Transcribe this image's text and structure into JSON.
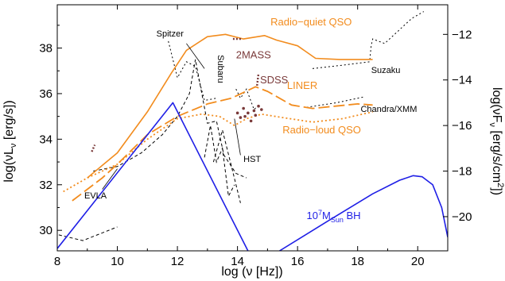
{
  "chart_data": {
    "type": "line",
    "xlabel": {
      "main": "log (ν [Hz])"
    },
    "ylabel_left": {
      "pre": "log(νL",
      "sub": "ν",
      "post": " [erg/s])"
    },
    "ylabel_right": {
      "pre": "log(νF",
      "sub": "ν",
      "post": " [erg/s/cm",
      "sup": "2",
      "end": "])"
    },
    "xlim": [
      8,
      21
    ],
    "ylim": [
      29.1,
      39.9
    ],
    "y2_offset": 50.6,
    "x_ticks": [
      "8",
      "10",
      "12",
      "14",
      "16",
      "18",
      "20"
    ],
    "y_ticks": [
      "30",
      "32",
      "34",
      "36",
      "38"
    ],
    "y2_ticks": [
      "−12",
      "−14",
      "−16",
      "−18",
      "−20"
    ],
    "series": [
      {
        "name": "Radio−quiet QSO",
        "color": "#f28c1e",
        "dash": "solid",
        "x": [
          9.0,
          10.0,
          11.0,
          11.8,
          12.3,
          13.0,
          13.6,
          14.2,
          14.9,
          15.3,
          16.0,
          16.6,
          17.4,
          18.5
        ],
        "y": [
          32.3,
          33.4,
          35.2,
          36.9,
          37.9,
          38.5,
          38.6,
          38.4,
          38.55,
          38.35,
          38.1,
          37.55,
          37.5,
          37.5
        ]
      },
      {
        "name": "LINER",
        "color": "#f28c1e",
        "dash": "long",
        "x": [
          8.5,
          9.5,
          10.0,
          11.0,
          12.0,
          13.0,
          13.8,
          14.6,
          15.0,
          15.8,
          16.5,
          18.0,
          18.5
        ],
        "y": [
          31.3,
          32.3,
          32.9,
          34.2,
          35.0,
          35.55,
          35.8,
          36.3,
          36.1,
          35.5,
          35.35,
          35.55,
          35.5
        ]
      },
      {
        "name": "Radio−loud QSO",
        "color": "#f28c1e",
        "dash": "dotted",
        "x": [
          8.2,
          9.0,
          10.0,
          11.0,
          12.0,
          12.8,
          13.4,
          13.9,
          14.3,
          14.8,
          15.5,
          16.5,
          17.5,
          18.5
        ],
        "y": [
          31.7,
          32.3,
          32.9,
          34.0,
          34.9,
          35.1,
          35.0,
          34.6,
          34.9,
          35.1,
          34.95,
          34.75,
          34.9,
          35.2
        ]
      },
      {
        "name": "blue-low",
        "color": "#1f1fe6",
        "dash": "solid",
        "x": [
          8.0,
          11.85,
          14.35
        ],
        "y": [
          29.2,
          35.6,
          29.1
        ]
      },
      {
        "name": "blue-high",
        "color": "#1f1fe6",
        "dash": "solid",
        "x": [
          15.4,
          17.0,
          18.5,
          19.4,
          19.85,
          20.15,
          20.5,
          20.8,
          21.0
        ],
        "y": [
          29.1,
          30.4,
          31.6,
          32.2,
          32.4,
          32.35,
          32.0,
          31.0,
          29.7
        ]
      }
    ],
    "sensitivity_curves": [
      {
        "name": "EVLA-1",
        "style": "dashed",
        "x": [
          8.05,
          8.85,
          10.0
        ],
        "y": [
          29.8,
          29.55,
          30.15
        ]
      },
      {
        "name": "EVLA-2",
        "style": "dashed",
        "x": [
          9.2,
          10.0,
          10.8,
          11.5,
          12.0,
          12.4,
          12.6,
          13.0,
          13.3,
          13.55,
          13.75,
          13.95,
          14.3
        ],
        "y": [
          32.6,
          32.8,
          33.4,
          34.2,
          35.0,
          36.0,
          37.5,
          34.7,
          34.8,
          33.3,
          32.9,
          32.5,
          32.3
        ]
      },
      {
        "name": "HST-1",
        "style": "dashed",
        "x": [
          12.9,
          13.1,
          13.3,
          13.5,
          13.7,
          13.9
        ],
        "y": [
          33.2,
          34.6,
          33.0,
          33.6,
          31.5,
          32.0
        ]
      },
      {
        "name": "HST-2",
        "style": "dashed",
        "x": [
          13.2,
          13.5,
          13.8,
          14.1
        ],
        "y": [
          33.0,
          34.4,
          32.8,
          31.2
        ]
      },
      {
        "name": "Spitzer",
        "style": "dotted",
        "x": [
          11.7,
          12.0,
          12.3,
          12.6,
          12.9,
          13.3
        ],
        "y": [
          38.3,
          36.7,
          37.4,
          37.2,
          35.7,
          35.8
        ]
      },
      {
        "name": "Subaru",
        "style": "dotted",
        "x": [
          13.95,
          14.1,
          14.3,
          14.55,
          14.7
        ],
        "y": [
          36.2,
          35.8,
          36.2,
          35.3,
          35.5
        ]
      },
      {
        "name": "Suzaku",
        "style": "dotted",
        "x": [
          16.5,
          17.5,
          18.4,
          18.45,
          18.5,
          18.9,
          19.8,
          20.2
        ],
        "y": [
          37.1,
          37.25,
          37.4,
          38.1,
          38.4,
          38.2,
          39.3,
          39.6
        ]
      },
      {
        "name": "Chandra/XMM",
        "style": "dotted",
        "x": [
          16.3,
          17.3,
          18.2
        ],
        "y": [
          35.4,
          35.6,
          35.85
        ]
      }
    ],
    "dark_red_marks": [
      {
        "name": "radio-point",
        "x": [
          9.15,
          9.25
        ],
        "y": [
          33.45,
          33.75
        ]
      },
      {
        "name": "2MASS-marks",
        "x": [
          13.85,
          14.15
        ],
        "y": [
          38.4,
          38.4
        ]
      },
      {
        "name": "SDSS-marks",
        "x": [
          14.65,
          14.7
        ],
        "y": [
          36.35,
          36.9
        ]
      }
    ],
    "dark_red_dots": {
      "x": [
        14.0,
        14.1,
        14.2,
        14.25,
        14.35,
        14.45,
        14.55,
        14.6,
        14.7,
        14.8
      ],
      "y": [
        35.15,
        34.95,
        35.35,
        35.0,
        35.15,
        34.8,
        35.25,
        35.05,
        35.45,
        35.3
      ]
    },
    "labels": {
      "rq_qso": "Radio−quiet QSO",
      "liner": "LINER",
      "rl_qso": "Radio−loud QSO",
      "spitzer": "Spitzer",
      "subaru": "Subaru",
      "twomass": "2MASS",
      "sdss": "SDSS",
      "suzaku": "Suzaku",
      "chandra": "Chandra/XMM",
      "hst": "HST",
      "evla": "EVLA",
      "bh_pre": "10",
      "bh_sup": "7",
      "bh_mid": "M",
      "bh_sub": "Sun",
      "bh_post": " BH"
    },
    "colors": {
      "orange": "#f28c1e",
      "blue": "#1f1fe6",
      "dark_red": "#7a3a3a",
      "black": "#000000"
    }
  }
}
